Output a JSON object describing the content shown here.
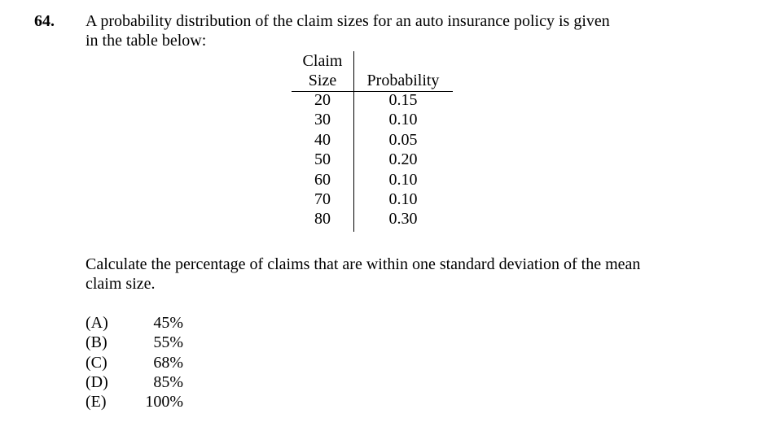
{
  "question": {
    "number": "64.",
    "lines": [
      "A probability distribution of the claim sizes for an auto insurance policy is given",
      "in the table below:"
    ]
  },
  "table": {
    "claim_header": [
      "Claim",
      "Size"
    ],
    "prob_header": "Probability",
    "rows": [
      {
        "size": "20",
        "prob": "0.15"
      },
      {
        "size": "30",
        "prob": "0.10"
      },
      {
        "size": "40",
        "prob": "0.05"
      },
      {
        "size": "50",
        "prob": "0.20"
      },
      {
        "size": "60",
        "prob": "0.10"
      },
      {
        "size": "70",
        "prob": "0.10"
      },
      {
        "size": "80",
        "prob": "0.30"
      }
    ]
  },
  "calc": {
    "lines": [
      "Calculate the percentage of claims that are within one standard deviation of the mean",
      "claim size."
    ]
  },
  "choices": [
    {
      "letter": "(A)",
      "value": "45%"
    },
    {
      "letter": "(B)",
      "value": "55%"
    },
    {
      "letter": "(C)",
      "value": "68%"
    },
    {
      "letter": "(D)",
      "value": "85%"
    },
    {
      "letter": "(E)",
      "value": "100%"
    }
  ]
}
